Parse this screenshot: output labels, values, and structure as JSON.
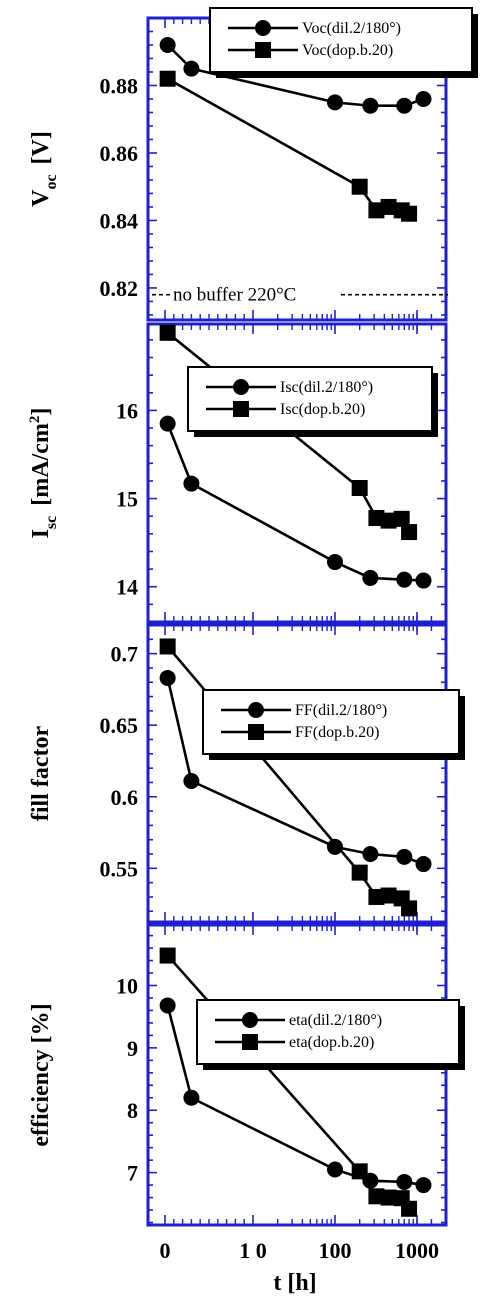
{
  "chart_data": [
    {
      "type": "line",
      "ylabel": "V",
      "ylabel_sub": "oc",
      "ylabel_unit": "[V]",
      "ylim": [
        0.8105,
        0.9
      ],
      "yticks": [
        0.82,
        0.84,
        0.86,
        0.88
      ],
      "ytick_labels": [
        "0.82",
        "0.84",
        "0.86",
        "0.88"
      ],
      "legend_placement": "top-right",
      "annotation": {
        "text": "no buffer 220°C",
        "y": 0.818,
        "style": "dashed"
      },
      "series": [
        {
          "name": "Voc(dil.2/180°)",
          "marker": "circle",
          "x": [
            0.3,
            3,
            100,
            270,
            700,
            1200
          ],
          "y": [
            0.892,
            0.885,
            0.875,
            0.874,
            0.874,
            0.876
          ]
        },
        {
          "name": "Voc(dop.b.20)",
          "marker": "square",
          "x": [
            0.3,
            200,
            320,
            450,
            650,
            800
          ],
          "y": [
            0.882,
            0.85,
            0.843,
            0.844,
            0.843,
            0.842
          ]
        }
      ]
    },
    {
      "type": "line",
      "ylabel": "I",
      "ylabel_sub": "sc",
      "ylabel_unit": "[mA/cm",
      "ylabel_sup": "2",
      "ylabel_close": "]",
      "ylim": [
        13.6,
        16.98
      ],
      "yticks": [
        14,
        15,
        16
      ],
      "ytick_labels": [
        "14",
        "15",
        "16"
      ],
      "legend_placement": "top-right",
      "series": [
        {
          "name": "Isc(dil.2/180°)",
          "marker": "circle",
          "x": [
            0.3,
            3,
            100,
            270,
            700,
            1200
          ],
          "y": [
            15.85,
            15.17,
            14.28,
            14.1,
            14.08,
            14.07
          ]
        },
        {
          "name": "Isc(dop.b.20)",
          "marker": "square",
          "x": [
            0.3,
            200,
            320,
            450,
            650,
            800
          ],
          "y": [
            16.88,
            15.12,
            14.78,
            14.75,
            14.77,
            14.62
          ]
        }
      ]
    },
    {
      "type": "line",
      "ylabel": "fill  factor",
      "ylim": [
        0.5125,
        0.72
      ],
      "yticks": [
        0.55,
        0.6,
        0.65,
        0.7
      ],
      "ytick_labels": [
        "0.55",
        "0.6",
        "0.65",
        "0.7"
      ],
      "legend_placement": "center-right",
      "series": [
        {
          "name": "FF(dil.2/180°)",
          "marker": "circle",
          "x": [
            0.3,
            3,
            100,
            270,
            700,
            1200
          ],
          "y": [
            0.683,
            0.611,
            0.565,
            0.56,
            0.558,
            0.553
          ]
        },
        {
          "name": "FF(dop.b.20)",
          "marker": "square",
          "x": [
            0.3,
            200,
            320,
            450,
            650,
            800
          ],
          "y": [
            0.705,
            0.547,
            0.53,
            0.531,
            0.529,
            0.522
          ]
        }
      ]
    },
    {
      "type": "line",
      "xlabel": "t  [h]",
      "xticks": [
        0,
        10,
        100,
        1000
      ],
      "xtick_labels": [
        "0",
        "1 0",
        "100",
        "1000"
      ],
      "ylabel": "efficiency  [%]",
      "ylim": [
        6.16,
        10.97
      ],
      "yticks": [
        7,
        8,
        9,
        10
      ],
      "ytick_labels": [
        "7",
        "8",
        "9",
        "10"
      ],
      "legend_placement": "top-right",
      "series": [
        {
          "name": "eta(dil.2/180°)",
          "marker": "circle",
          "x": [
            0.3,
            3,
            100,
            270,
            700,
            1200
          ],
          "y": [
            9.68,
            8.2,
            7.05,
            6.87,
            6.85,
            6.8
          ]
        },
        {
          "name": "eta(dop.b.20)",
          "marker": "square",
          "x": [
            0.3,
            200,
            320,
            450,
            650,
            800
          ],
          "y": [
            10.48,
            7.02,
            6.62,
            6.6,
            6.59,
            6.42
          ]
        }
      ]
    }
  ],
  "colors": {
    "axis": "#1f1fcf",
    "data": "#000000",
    "background": "#ffffff"
  }
}
